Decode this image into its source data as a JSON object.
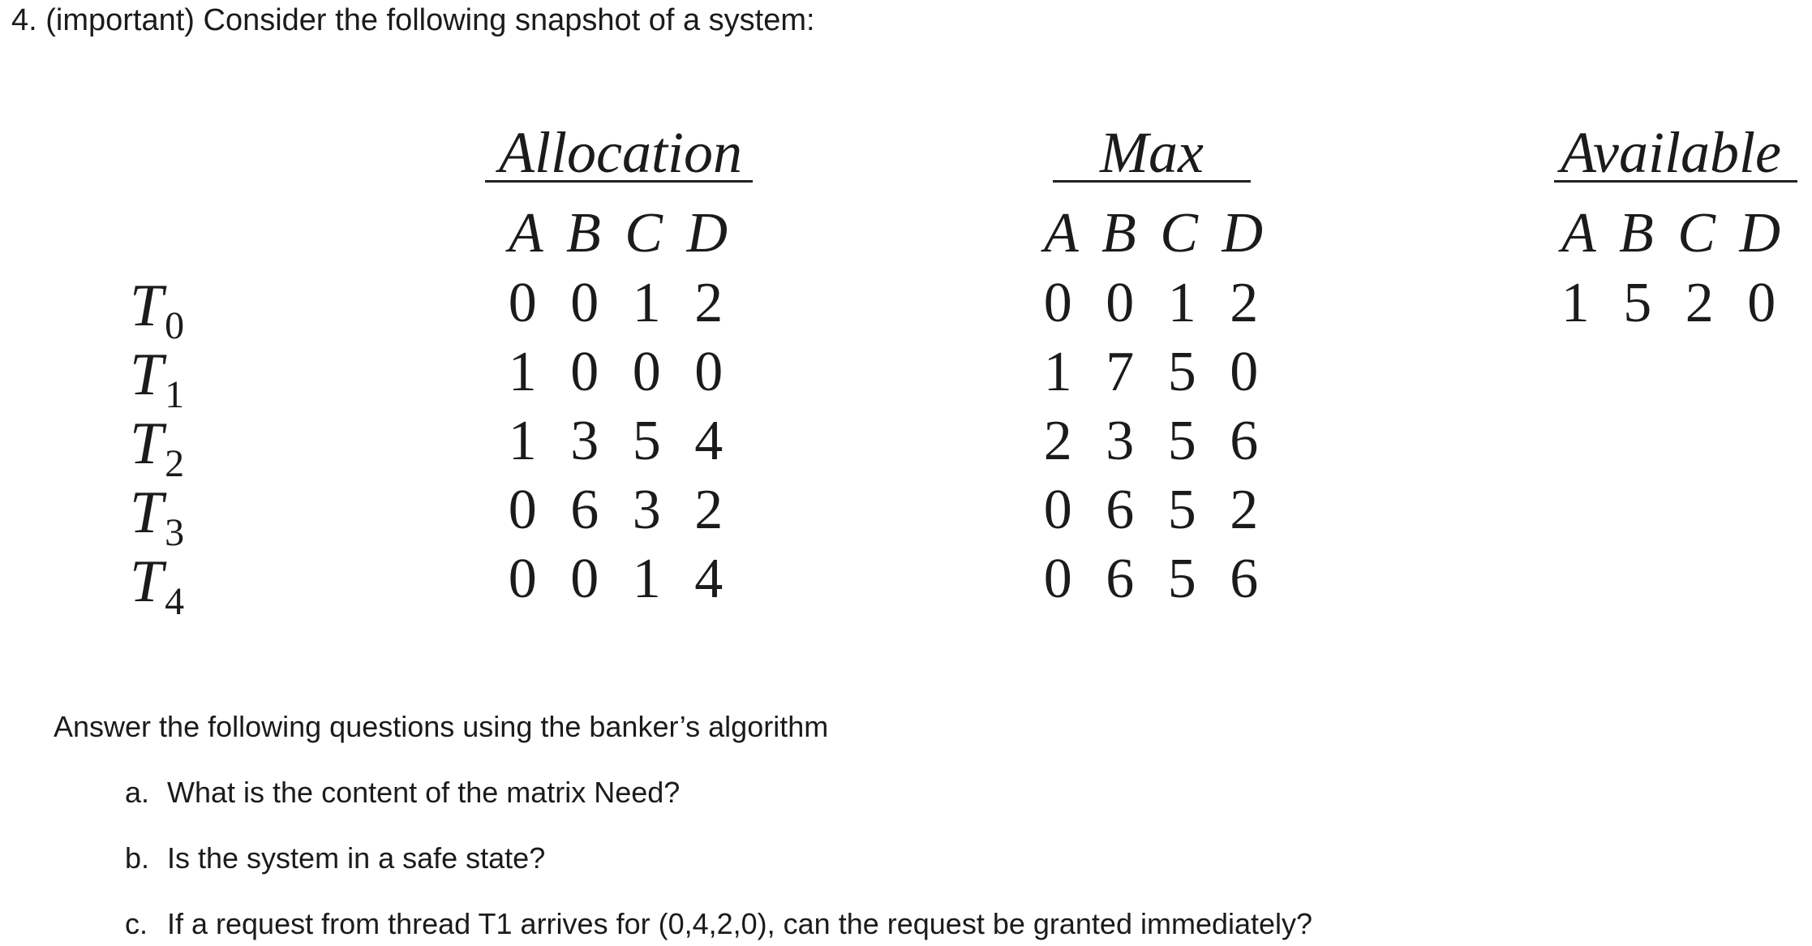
{
  "heading": "4. (important) Consider the following snapshot of a system:",
  "table": {
    "allocation_title": "Allocation",
    "max_title": "Max",
    "available_title": "Available",
    "resource_letters": "A B C D",
    "threads": [
      {
        "name": "T",
        "sub": "0"
      },
      {
        "name": "T",
        "sub": "1"
      },
      {
        "name": "T",
        "sub": "2"
      },
      {
        "name": "T",
        "sub": "3"
      },
      {
        "name": "T",
        "sub": "4"
      }
    ],
    "allocation_rows": [
      "0 0 1 2",
      "1 0 0 0",
      "1 3 5 4",
      "0 6 3 2",
      "0 0 1 4"
    ],
    "max_rows": [
      "0 0 1 2",
      "1 7 5 0",
      "2 3 5 6",
      "0 6 5 2",
      "0 6 5 6"
    ],
    "available_row": "1 5 2 0"
  },
  "intro": "Answer the following questions using the banker’s algorithm",
  "questions": [
    {
      "label": "a.",
      "text": "What is the content of the matrix Need?"
    },
    {
      "label": "b.",
      "text": "Is the system in a safe state?"
    },
    {
      "label": "c.",
      "text": "If a request from thread T1 arrives for (0,4,2,0), can the request be granted immediately?"
    }
  ]
}
